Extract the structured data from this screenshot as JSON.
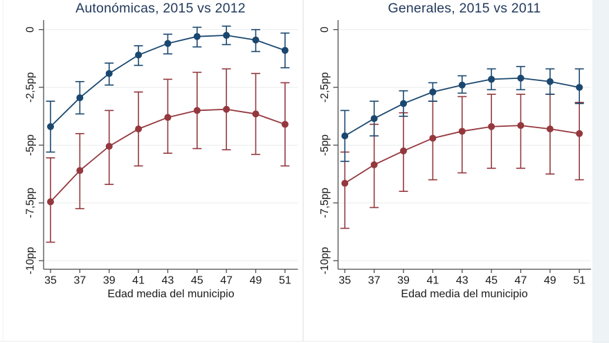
{
  "palette": {
    "navy": "#1a476f",
    "maroon": "#94383e",
    "title_color": "#21395c",
    "axis_color": "#4d4d4d",
    "text_color": "#1a1a1a",
    "grid_color": "#e9eced",
    "divider_color": "#ededed",
    "edge_color": "#f1f1f1",
    "right_strip_color": "#eef4f5"
  },
  "chart_data": [
    {
      "type": "line",
      "title": "Autonómicas, 2015 vs 2012",
      "xlabel": "Edad media del municipio",
      "x": [
        35,
        37,
        39,
        41,
        43,
        45,
        47,
        49,
        51
      ],
      "xticks": [
        "35",
        "37",
        "39",
        "41",
        "43",
        "45",
        "47",
        "49",
        "51"
      ],
      "yticks": [
        {
          "value": 0,
          "label": "0"
        },
        {
          "value": -2.5,
          "label": "-2,5pp"
        },
        {
          "value": -5,
          "label": "-5pp"
        },
        {
          "value": -7.5,
          "label": "-7,5pp"
        },
        {
          "value": -10,
          "label": "-10pp"
        }
      ],
      "ylim": [
        -10.4,
        0.4
      ],
      "grid": true,
      "legend": "none",
      "series": [
        {
          "name": "series-navy",
          "color": "#1a476f",
          "values": [
            -4.2,
            -2.95,
            -1.9,
            -1.1,
            -0.6,
            -0.3,
            -0.25,
            -0.45,
            -0.9
          ],
          "ci_high": [
            -3.1,
            -2.25,
            -1.45,
            -0.7,
            -0.2,
            0.1,
            0.15,
            0.0,
            -0.15
          ],
          "ci_low": [
            -5.3,
            -3.65,
            -2.4,
            -1.55,
            -1.05,
            -0.75,
            -0.65,
            -0.95,
            -1.65
          ]
        },
        {
          "name": "series-maroon",
          "color": "#94383e",
          "values": [
            -7.45,
            -6.1,
            -5.05,
            -4.3,
            -3.8,
            -3.5,
            -3.45,
            -3.65,
            -4.1
          ],
          "ci_high": [
            -5.55,
            -4.5,
            -3.5,
            -2.7,
            -2.15,
            -1.85,
            -1.7,
            -1.9,
            -2.3
          ],
          "ci_low": [
            -9.2,
            -7.75,
            -6.7,
            -5.9,
            -5.35,
            -5.15,
            -5.2,
            -5.4,
            -5.9
          ]
        }
      ]
    },
    {
      "type": "line",
      "title": "Generales, 2015 vs 2011",
      "xlabel": "Edad media del municipio",
      "x": [
        35,
        37,
        39,
        41,
        43,
        45,
        47,
        49,
        51
      ],
      "xticks": [
        "35",
        "37",
        "39",
        "41",
        "43",
        "45",
        "47",
        "49",
        "51"
      ],
      "yticks": [
        {
          "value": 0,
          "label": "0"
        },
        {
          "value": -2.5,
          "label": "-2,5pp"
        },
        {
          "value": -5,
          "label": "-5pp"
        },
        {
          "value": -7.5,
          "label": "-7,5pp"
        },
        {
          "value": -10,
          "label": "-10pp"
        }
      ],
      "ylim": [
        -10.4,
        0.4
      ],
      "grid": true,
      "legend": "none",
      "series": [
        {
          "name": "series-navy",
          "color": "#1a476f",
          "values": [
            -4.6,
            -3.85,
            -3.2,
            -2.7,
            -2.4,
            -2.15,
            -2.1,
            -2.25,
            -2.5
          ],
          "ci_high": [
            -3.5,
            -3.1,
            -2.65,
            -2.3,
            -2.0,
            -1.7,
            -1.6,
            -1.7,
            -1.7
          ],
          "ci_low": [
            -5.7,
            -4.6,
            -3.75,
            -3.1,
            -2.75,
            -2.6,
            -2.6,
            -2.8,
            -3.2
          ]
        },
        {
          "name": "series-maroon",
          "color": "#94383e",
          "values": [
            -6.65,
            -5.85,
            -5.25,
            -4.7,
            -4.4,
            -4.2,
            -4.15,
            -4.3,
            -4.5
          ],
          "ci_high": [
            -5.3,
            -4.1,
            -3.6,
            -3.1,
            -2.9,
            -2.8,
            -2.8,
            -2.8,
            -3.15
          ],
          "ci_low": [
            -8.6,
            -7.7,
            -7.0,
            -6.5,
            -6.2,
            -6.0,
            -6.0,
            -6.25,
            -6.5
          ]
        }
      ]
    }
  ]
}
